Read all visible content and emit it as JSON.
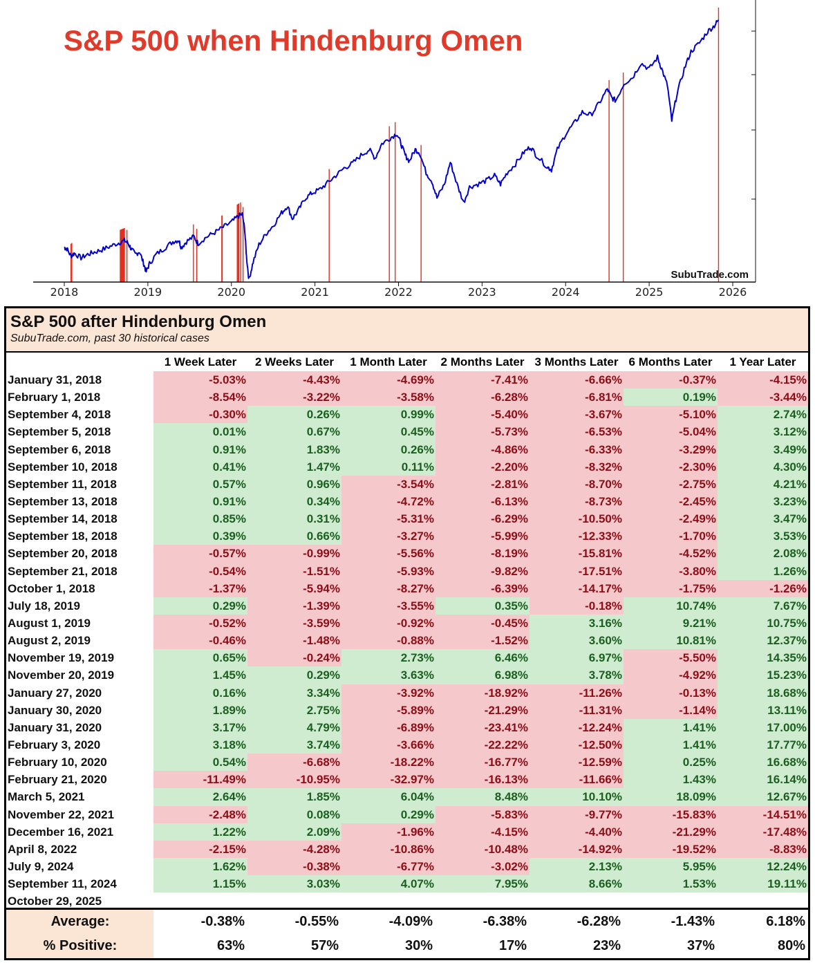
{
  "chart_data": [
    {
      "type": "line",
      "title": "S&P 500 when Hindenburg Omen",
      "watermark": "SubuTrade.com",
      "x_ticks": [
        "2018",
        "2019",
        "2020",
        "2021",
        "2022",
        "2023",
        "2024",
        "2025",
        "2026"
      ],
      "xlim": [
        2018.0,
        2026.0
      ],
      "ylim": [
        2200,
        7000
      ],
      "grid": false,
      "series": [
        {
          "color": "#0000cc",
          "points": [
            [
              2018.0,
              2800
            ],
            [
              2018.03,
              2780
            ],
            [
              2018.08,
              2650
            ],
            [
              2018.12,
              2700
            ],
            [
              2018.2,
              2620
            ],
            [
              2018.28,
              2680
            ],
            [
              2018.36,
              2720
            ],
            [
              2018.45,
              2760
            ],
            [
              2018.55,
              2820
            ],
            [
              2018.65,
              2880
            ],
            [
              2018.72,
              2920
            ],
            [
              2018.76,
              2880
            ],
            [
              2018.8,
              2780
            ],
            [
              2018.85,
              2680
            ],
            [
              2018.9,
              2730
            ],
            [
              2018.95,
              2520
            ],
            [
              2018.98,
              2380
            ],
            [
              2019.02,
              2520
            ],
            [
              2019.1,
              2680
            ],
            [
              2019.2,
              2790
            ],
            [
              2019.3,
              2900
            ],
            [
              2019.37,
              2930
            ],
            [
              2019.4,
              2800
            ],
            [
              2019.46,
              2900
            ],
            [
              2019.55,
              2990
            ],
            [
              2019.6,
              2870
            ],
            [
              2019.7,
              2980
            ],
            [
              2019.8,
              3060
            ],
            [
              2019.9,
              3150
            ],
            [
              2020.0,
              3240
            ],
            [
              2020.08,
              3340
            ],
            [
              2020.13,
              3380
            ],
            [
              2020.16,
              3100
            ],
            [
              2020.18,
              2650
            ],
            [
              2020.21,
              2240
            ],
            [
              2020.26,
              2550
            ],
            [
              2020.33,
              2850
            ],
            [
              2020.42,
              3050
            ],
            [
              2020.5,
              3180
            ],
            [
              2020.6,
              3400
            ],
            [
              2020.67,
              3520
            ],
            [
              2020.73,
              3300
            ],
            [
              2020.8,
              3440
            ],
            [
              2020.88,
              3650
            ],
            [
              2020.96,
              3740
            ],
            [
              2021.05,
              3800
            ],
            [
              2021.15,
              3920
            ],
            [
              2021.25,
              4050
            ],
            [
              2021.35,
              4180
            ],
            [
              2021.45,
              4260
            ],
            [
              2021.55,
              4400
            ],
            [
              2021.65,
              4500
            ],
            [
              2021.72,
              4350
            ],
            [
              2021.8,
              4600
            ],
            [
              2021.9,
              4700
            ],
            [
              2021.98,
              4780
            ],
            [
              2022.03,
              4600
            ],
            [
              2022.08,
              4400
            ],
            [
              2022.13,
              4300
            ],
            [
              2022.2,
              4500
            ],
            [
              2022.25,
              4450
            ],
            [
              2022.33,
              4100
            ],
            [
              2022.4,
              3950
            ],
            [
              2022.46,
              3660
            ],
            [
              2022.55,
              3900
            ],
            [
              2022.62,
              4280
            ],
            [
              2022.7,
              3900
            ],
            [
              2022.78,
              3580
            ],
            [
              2022.85,
              3850
            ],
            [
              2022.95,
              3900
            ],
            [
              2023.05,
              3960
            ],
            [
              2023.15,
              4050
            ],
            [
              2023.22,
              3900
            ],
            [
              2023.3,
              4100
            ],
            [
              2023.4,
              4250
            ],
            [
              2023.5,
              4450
            ],
            [
              2023.58,
              4550
            ],
            [
              2023.65,
              4400
            ],
            [
              2023.78,
              4200
            ],
            [
              2023.83,
              4150
            ],
            [
              2023.9,
              4500
            ],
            [
              2024.0,
              4770
            ],
            [
              2024.1,
              4950
            ],
            [
              2024.2,
              5150
            ],
            [
              2024.3,
              5100
            ],
            [
              2024.4,
              5300
            ],
            [
              2024.5,
              5550
            ],
            [
              2024.55,
              5400
            ],
            [
              2024.6,
              5350
            ],
            [
              2024.7,
              5650
            ],
            [
              2024.8,
              5750
            ],
            [
              2024.9,
              6000
            ],
            [
              2025.0,
              5900
            ],
            [
              2025.1,
              6100
            ],
            [
              2025.15,
              5900
            ],
            [
              2025.22,
              5600
            ],
            [
              2025.27,
              5000
            ],
            [
              2025.33,
              5450
            ],
            [
              2025.42,
              5900
            ],
            [
              2025.5,
              6200
            ],
            [
              2025.6,
              6350
            ],
            [
              2025.7,
              6550
            ],
            [
              2025.78,
              6650
            ],
            [
              2025.83,
              6750
            ]
          ]
        }
      ],
      "signal_lines": [
        2018.08,
        2018.09,
        2018.67,
        2018.68,
        2018.685,
        2018.69,
        2018.7,
        2018.705,
        2018.71,
        2018.72,
        2018.75,
        2019.545,
        2019.585,
        2019.585,
        2019.885,
        2019.89,
        2020.07,
        2020.08,
        2020.085,
        2020.09,
        2020.11,
        2020.14,
        2021.17,
        2021.89,
        2021.96,
        2022.27,
        2024.52,
        2024.69,
        2025.83
      ],
      "signal_color": "#e03020"
    },
    {
      "type": "table",
      "title": "S&P 500 after Hindenburg Omen",
      "subtitle": "SubuTrade.com, past 30 historical cases",
      "columns": [
        "1 Week Later",
        "2 Weeks Later",
        "1 Month Later",
        "2 Months Later",
        "3 Months Later",
        "6 Months Later",
        "1 Year Later"
      ],
      "rows": [
        {
          "date": "January 31, 2018",
          "values": [
            "-5.03%",
            "-4.43%",
            "-4.69%",
            "-7.41%",
            "-6.66%",
            "-0.37%",
            "-4.15%"
          ]
        },
        {
          "date": "February 1, 2018",
          "values": [
            "-8.54%",
            "-3.22%",
            "-3.58%",
            "-6.28%",
            "-6.81%",
            "0.19%",
            "-3.44%"
          ]
        },
        {
          "date": "September 4, 2018",
          "values": [
            "-0.30%",
            "0.26%",
            "0.99%",
            "-5.40%",
            "-3.67%",
            "-5.10%",
            "2.74%"
          ]
        },
        {
          "date": "September 5, 2018",
          "values": [
            "0.01%",
            "0.67%",
            "0.45%",
            "-5.73%",
            "-6.53%",
            "-5.04%",
            "3.12%"
          ]
        },
        {
          "date": "September 6, 2018",
          "values": [
            "0.91%",
            "1.83%",
            "0.26%",
            "-4.86%",
            "-6.33%",
            "-3.29%",
            "3.49%"
          ]
        },
        {
          "date": "September 10, 2018",
          "values": [
            "0.41%",
            "1.47%",
            "0.11%",
            "-2.20%",
            "-8.32%",
            "-2.30%",
            "4.30%"
          ]
        },
        {
          "date": "September 11, 2018",
          "values": [
            "0.57%",
            "0.96%",
            "-3.54%",
            "-2.81%",
            "-8.70%",
            "-2.75%",
            "4.21%"
          ]
        },
        {
          "date": "September 13, 2018",
          "values": [
            "0.91%",
            "0.34%",
            "-4.72%",
            "-6.13%",
            "-8.73%",
            "-2.45%",
            "3.23%"
          ]
        },
        {
          "date": "September 14, 2018",
          "values": [
            "0.85%",
            "0.31%",
            "-5.31%",
            "-6.29%",
            "-10.50%",
            "-2.49%",
            "3.47%"
          ]
        },
        {
          "date": "September 18, 2018",
          "values": [
            "0.39%",
            "0.66%",
            "-3.27%",
            "-5.99%",
            "-12.33%",
            "-1.70%",
            "3.53%"
          ]
        },
        {
          "date": "September 20, 2018",
          "values": [
            "-0.57%",
            "-0.99%",
            "-5.56%",
            "-8.19%",
            "-15.81%",
            "-4.52%",
            "2.08%"
          ]
        },
        {
          "date": "September 21, 2018",
          "values": [
            "-0.54%",
            "-1.51%",
            "-5.93%",
            "-9.82%",
            "-17.51%",
            "-3.80%",
            "1.26%"
          ]
        },
        {
          "date": "October 1, 2018",
          "values": [
            "-1.37%",
            "-5.94%",
            "-8.27%",
            "-6.39%",
            "-14.17%",
            "-1.75%",
            "-1.26%"
          ]
        },
        {
          "date": "July 18, 2019",
          "values": [
            "0.29%",
            "-1.39%",
            "-3.55%",
            "0.35%",
            "-0.18%",
            "10.74%",
            "7.67%"
          ]
        },
        {
          "date": "August 1, 2019",
          "values": [
            "-0.52%",
            "-3.59%",
            "-0.92%",
            "-0.45%",
            "3.16%",
            "9.21%",
            "10.75%"
          ]
        },
        {
          "date": "August 2, 2019",
          "values": [
            "-0.46%",
            "-1.48%",
            "-0.88%",
            "-1.52%",
            "3.60%",
            "10.81%",
            "12.37%"
          ]
        },
        {
          "date": "November 19, 2019",
          "values": [
            "0.65%",
            "-0.24%",
            "2.73%",
            "6.46%",
            "6.97%",
            "-5.50%",
            "14.35%"
          ]
        },
        {
          "date": "November 20, 2019",
          "values": [
            "1.45%",
            "0.29%",
            "3.63%",
            "6.98%",
            "3.78%",
            "-4.92%",
            "15.23%"
          ]
        },
        {
          "date": "January 27, 2020",
          "values": [
            "0.16%",
            "3.34%",
            "-3.92%",
            "-18.92%",
            "-11.26%",
            "-0.13%",
            "18.68%"
          ]
        },
        {
          "date": "January 30, 2020",
          "values": [
            "1.89%",
            "2.75%",
            "-5.89%",
            "-21.29%",
            "-11.31%",
            "-1.14%",
            "13.11%"
          ]
        },
        {
          "date": "January 31, 2020",
          "values": [
            "3.17%",
            "4.79%",
            "-6.89%",
            "-23.41%",
            "-12.24%",
            "1.41%",
            "17.00%"
          ]
        },
        {
          "date": "February 3, 2020",
          "values": [
            "3.18%",
            "3.74%",
            "-3.66%",
            "-22.22%",
            "-12.50%",
            "1.41%",
            "17.77%"
          ]
        },
        {
          "date": "February 10, 2020",
          "values": [
            "0.54%",
            "-6.68%",
            "-18.22%",
            "-16.77%",
            "-12.59%",
            "0.25%",
            "16.68%"
          ]
        },
        {
          "date": "February 21, 2020",
          "values": [
            "-11.49%",
            "-10.95%",
            "-32.97%",
            "-16.13%",
            "-11.66%",
            "1.43%",
            "16.14%"
          ]
        },
        {
          "date": "March 5, 2021",
          "values": [
            "2.64%",
            "1.85%",
            "6.04%",
            "8.48%",
            "10.10%",
            "18.09%",
            "12.67%"
          ]
        },
        {
          "date": "November 22, 2021",
          "values": [
            "-2.48%",
            "0.08%",
            "0.29%",
            "-5.83%",
            "-9.77%",
            "-15.83%",
            "-14.51%"
          ]
        },
        {
          "date": "December 16, 2021",
          "values": [
            "1.22%",
            "2.09%",
            "-1.96%",
            "-4.15%",
            "-4.40%",
            "-21.29%",
            "-17.48%"
          ]
        },
        {
          "date": "April 8, 2022",
          "values": [
            "-2.15%",
            "-4.28%",
            "-10.86%",
            "-10.48%",
            "-14.92%",
            "-19.52%",
            "-8.83%"
          ]
        },
        {
          "date": "July 9, 2024",
          "values": [
            "1.62%",
            "-0.38%",
            "-6.77%",
            "-3.02%",
            "2.13%",
            "5.95%",
            "12.24%"
          ]
        },
        {
          "date": "September 11, 2024",
          "values": [
            "1.15%",
            "3.03%",
            "4.07%",
            "7.95%",
            "8.66%",
            "1.53%",
            "19.11%"
          ]
        },
        {
          "date": "October 29, 2025",
          "values": [
            "",
            "",
            "",
            "",
            "",
            "",
            ""
          ]
        }
      ],
      "summary": [
        {
          "label": "Average:",
          "values": [
            "-0.38%",
            "-0.55%",
            "-4.09%",
            "-6.38%",
            "-6.28%",
            "-1.43%",
            "6.18%"
          ]
        },
        {
          "label": "% Positive:",
          "values": [
            "63%",
            "57%",
            "30%",
            "17%",
            "23%",
            "37%",
            "80%"
          ]
        }
      ],
      "colors": {
        "positive_fill": "#cfecd0",
        "negative_fill": "#f5c9cc",
        "header_fill": "#fbe5d5"
      }
    }
  ]
}
